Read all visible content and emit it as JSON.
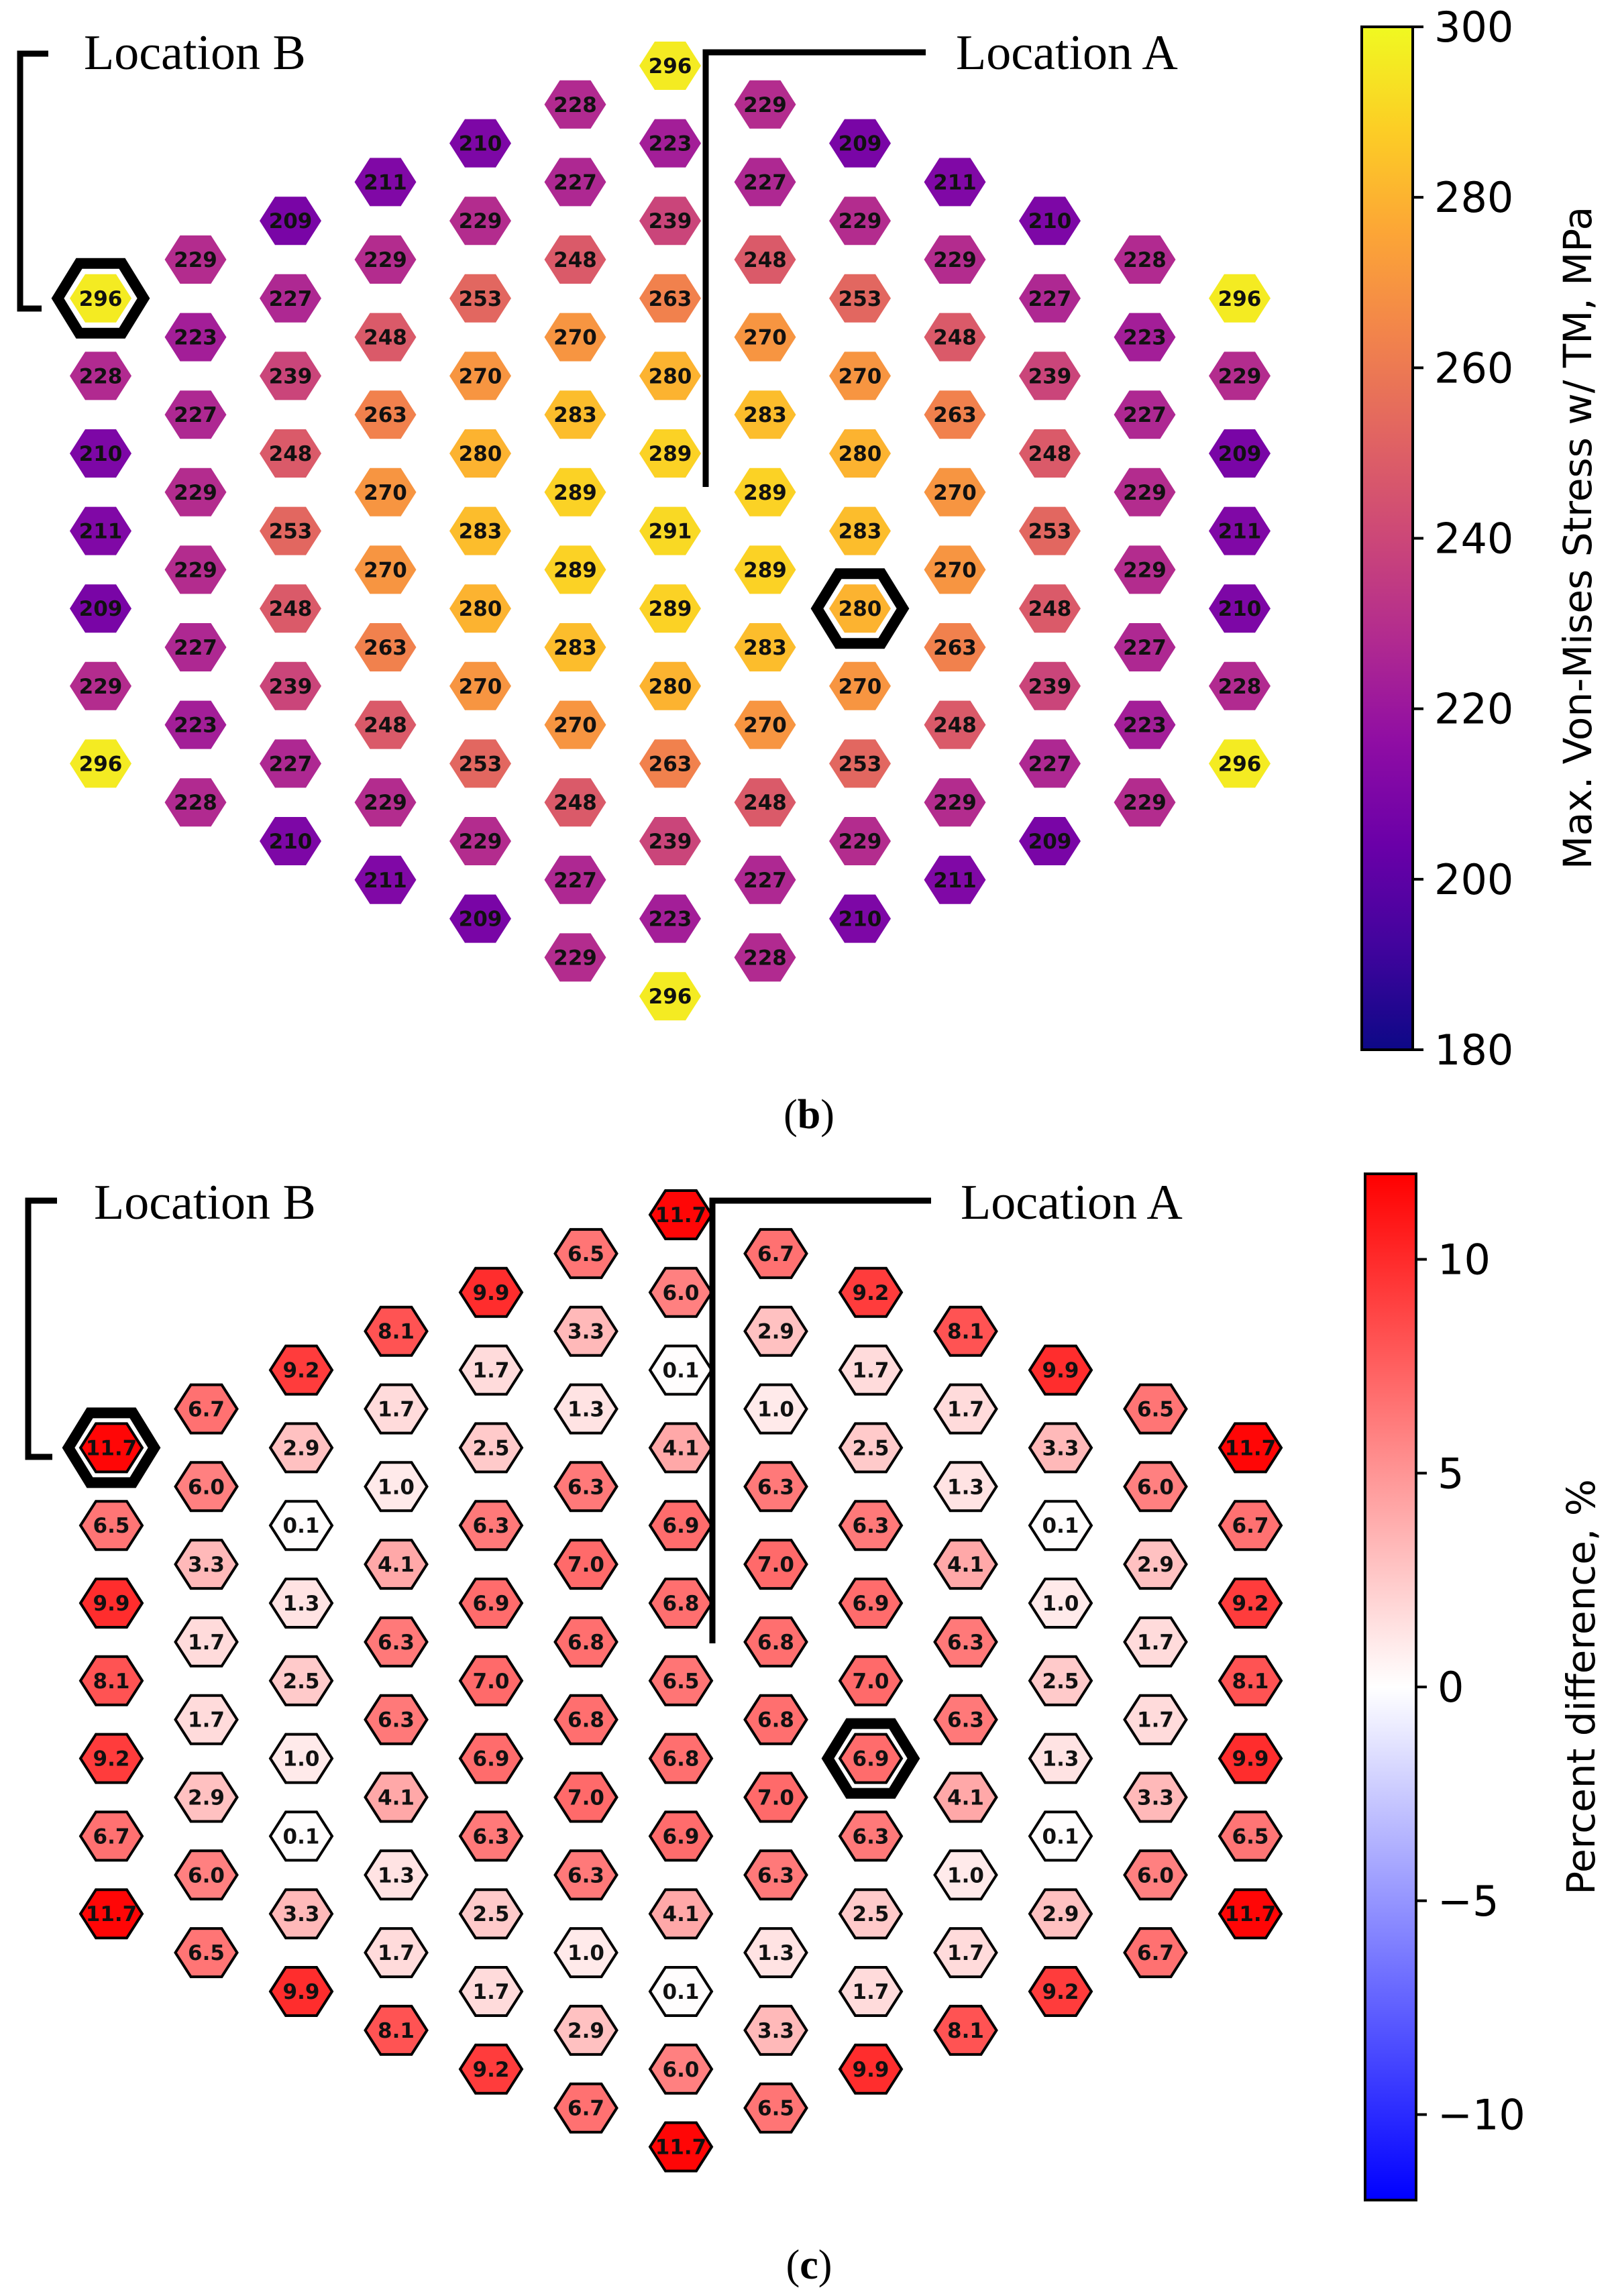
{
  "chart_data": [
    {
      "type": "heatmap",
      "subtype": "hexagonal-grid",
      "panel_label": "(b)",
      "panel_letter": "b",
      "colormap": "plasma",
      "value_format": "integer",
      "colorbar": {
        "label": "Max. Von-Mises Stress w/ TM, MPa",
        "range": [
          180,
          300
        ],
        "ticks": [
          "180",
          "200",
          "220",
          "240",
          "260",
          "280",
          "300"
        ],
        "tick_values": [
          180,
          200,
          220,
          240,
          260,
          280,
          300
        ]
      },
      "annotations": [
        {
          "label": "Location B",
          "column": 0,
          "row": 0
        },
        {
          "label": "Location A",
          "column": 8,
          "row": 6
        }
      ],
      "columns": [
        {
          "index": 0,
          "values": [
            296,
            228,
            210,
            211,
            209,
            229,
            296
          ]
        },
        {
          "index": 1,
          "values": [
            229,
            223,
            227,
            229,
            229,
            227,
            223,
            228
          ]
        },
        {
          "index": 2,
          "values": [
            209,
            227,
            239,
            248,
            253,
            248,
            239,
            227,
            210
          ]
        },
        {
          "index": 3,
          "values": [
            211,
            229,
            248,
            263,
            270,
            270,
            263,
            248,
            229,
            211
          ]
        },
        {
          "index": 4,
          "values": [
            210,
            229,
            253,
            270,
            280,
            283,
            280,
            270,
            253,
            229,
            209
          ]
        },
        {
          "index": 5,
          "values": [
            228,
            227,
            248,
            270,
            283,
            289,
            289,
            283,
            270,
            248,
            227,
            229
          ]
        },
        {
          "index": 6,
          "values": [
            296,
            223,
            239,
            263,
            280,
            289,
            291,
            289,
            280,
            263,
            239,
            223,
            296
          ]
        },
        {
          "index": 7,
          "values": [
            229,
            227,
            248,
            270,
            283,
            289,
            289,
            283,
            270,
            248,
            227,
            228
          ]
        },
        {
          "index": 8,
          "values": [
            209,
            229,
            253,
            270,
            280,
            283,
            280,
            270,
            253,
            229,
            210
          ]
        },
        {
          "index": 9,
          "values": [
            211,
            229,
            248,
            263,
            270,
            270,
            263,
            248,
            229,
            211
          ]
        },
        {
          "index": 10,
          "values": [
            210,
            227,
            239,
            248,
            253,
            248,
            239,
            227,
            209
          ]
        },
        {
          "index": 11,
          "values": [
            228,
            223,
            227,
            229,
            229,
            227,
            223,
            229
          ]
        },
        {
          "index": 12,
          "values": [
            296,
            229,
            209,
            211,
            210,
            228,
            296
          ]
        }
      ]
    },
    {
      "type": "heatmap",
      "subtype": "hexagonal-grid",
      "panel_label": "(c)",
      "panel_letter": "c",
      "colormap": "bwr",
      "value_format": "one-decimal",
      "colorbar": {
        "label": "Percent difference, %",
        "range": [
          -12,
          12
        ],
        "ticks": [
          "−10",
          "−5",
          "0",
          "5",
          "10"
        ],
        "tick_values": [
          -10,
          -5,
          0,
          5,
          10
        ]
      },
      "annotations": [
        {
          "label": "Location B",
          "column": 0,
          "row": 0
        },
        {
          "label": "Location A",
          "column": 8,
          "row": 6
        }
      ],
      "columns": [
        {
          "index": 0,
          "values": [
            11.7,
            6.5,
            9.9,
            8.1,
            9.2,
            6.7,
            11.7
          ]
        },
        {
          "index": 1,
          "values": [
            6.7,
            6.0,
            3.3,
            1.7,
            1.7,
            2.9,
            6.0,
            6.5
          ]
        },
        {
          "index": 2,
          "values": [
            9.2,
            2.9,
            0.1,
            1.3,
            2.5,
            1.0,
            0.1,
            3.3,
            9.9
          ]
        },
        {
          "index": 3,
          "values": [
            8.1,
            1.7,
            1.0,
            4.1,
            6.3,
            6.3,
            4.1,
            1.3,
            1.7,
            8.1
          ]
        },
        {
          "index": 4,
          "values": [
            9.9,
            1.7,
            2.5,
            6.3,
            6.9,
            7.0,
            6.9,
            6.3,
            2.5,
            1.7,
            9.2
          ]
        },
        {
          "index": 5,
          "values": [
            6.5,
            3.3,
            1.3,
            6.3,
            7.0,
            6.8,
            6.8,
            7.0,
            6.3,
            1.0,
            2.9,
            6.7
          ]
        },
        {
          "index": 6,
          "values": [
            11.7,
            6.0,
            0.1,
            4.1,
            6.9,
            6.8,
            6.5,
            6.8,
            6.9,
            4.1,
            0.1,
            6.0,
            11.7
          ]
        },
        {
          "index": 7,
          "values": [
            6.7,
            2.9,
            1.0,
            6.3,
            7.0,
            6.8,
            6.8,
            7.0,
            6.3,
            1.3,
            3.3,
            6.5
          ]
        },
        {
          "index": 8,
          "values": [
            9.2,
            1.7,
            2.5,
            6.3,
            6.9,
            7.0,
            6.9,
            6.3,
            2.5,
            1.7,
            9.9
          ]
        },
        {
          "index": 9,
          "values": [
            8.1,
            1.7,
            1.3,
            4.1,
            6.3,
            6.3,
            4.1,
            1.0,
            1.7,
            8.1
          ]
        },
        {
          "index": 10,
          "values": [
            9.9,
            3.3,
            0.1,
            1.0,
            2.5,
            1.3,
            0.1,
            2.9,
            9.2
          ]
        },
        {
          "index": 11,
          "values": [
            6.5,
            6.0,
            2.9,
            1.7,
            1.7,
            3.3,
            6.0,
            6.7
          ]
        },
        {
          "index": 12,
          "values": [
            11.7,
            6.7,
            9.2,
            8.1,
            9.9,
            6.5,
            11.7
          ]
        }
      ]
    }
  ]
}
